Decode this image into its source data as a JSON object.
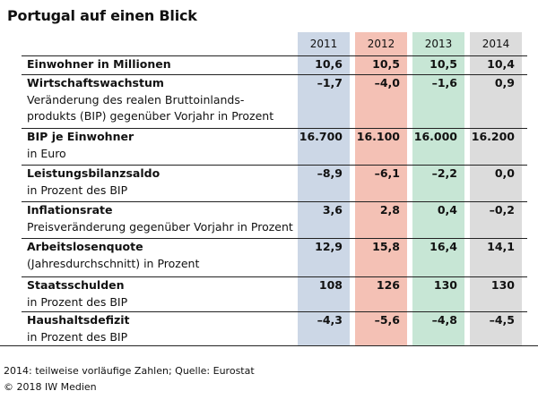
{
  "title": "Portugal auf einen Blick",
  "years": [
    "2011",
    "2012",
    "2013",
    "2014"
  ],
  "colors": [
    "#ccd7e6",
    "#f4c1b5",
    "#c7e6d5",
    "#dcdcdc"
  ],
  "rows": [
    {
      "label": "Einwohner in Millionen",
      "sub": "",
      "values": [
        "10,6",
        "10,5",
        "10,5",
        "10,4"
      ]
    },
    {
      "label": "Wirtschaftswachstum",
      "sub": "Veränderung des realen Bruttoinlands-\nprodukts (BIP) gegenüber Vorjahr in Prozent",
      "values": [
        "–1,7",
        "–4,0",
        "–1,6",
        "0,9"
      ]
    },
    {
      "label": "BIP je Einwohner",
      "sub": "in Euro",
      "values": [
        "16.700",
        "16.100",
        "16.000",
        "16.200"
      ]
    },
    {
      "label": "Leistungsbilanzsaldo",
      "sub": "in Prozent des BIP",
      "values": [
        "–8,9",
        "–6,1",
        "–2,2",
        "0,0"
      ]
    },
    {
      "label": "Inflationsrate",
      "sub": "Preisveränderung gegenüber Vorjahr in Prozent",
      "values": [
        "3,6",
        "2,8",
        "0,4",
        "–0,2"
      ]
    },
    {
      "label": "Arbeitslosenquote",
      "sub": "(Jahresdurchschnitt) in Prozent",
      "values": [
        "12,9",
        "15,8",
        "16,4",
        "14,1"
      ]
    },
    {
      "label": "Staatsschulden",
      "sub": "in Prozent des BIP",
      "values": [
        "108",
        "126",
        "130",
        "130"
      ]
    },
    {
      "label": "Haushaltsdefizit",
      "sub": "in Prozent des BIP",
      "values": [
        "–4,3",
        "–5,6",
        "–4,8",
        "–4,5"
      ]
    }
  ],
  "footer": {
    "note": "2014: teilweise vorläufige Zahlen; Quelle: Eurostat",
    "copyright": "© 2018 IW Medien"
  }
}
